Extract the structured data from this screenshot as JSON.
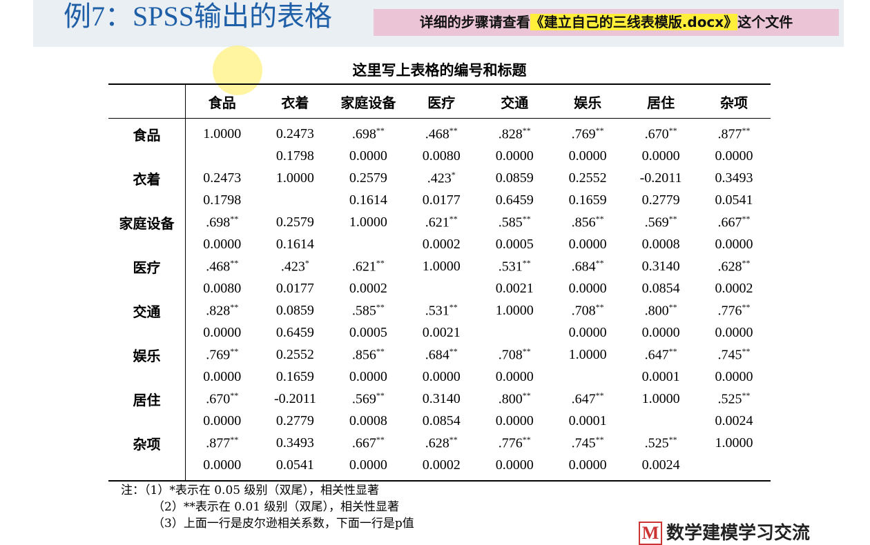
{
  "header": {
    "title": "例7：SPSS输出的表格",
    "note_before": "详细的步骤请查看",
    "note_highlight": "《建立自己的三线表模版.docx》",
    "note_after": "这个文件"
  },
  "table": {
    "caption": "这里写上表格的编号和标题",
    "columns": [
      "食品",
      "衣着",
      "家庭设备",
      "医疗",
      "交通",
      "娱乐",
      "居住",
      "杂项"
    ],
    "rows": [
      {
        "label": "食品",
        "r": [
          "1.0000",
          "0.2473",
          ".698**",
          ".468**",
          ".828**",
          ".769**",
          ".670**",
          ".877**"
        ],
        "p": [
          null,
          "0.1798",
          "0.0000",
          "0.0080",
          "0.0000",
          "0.0000",
          "0.0000",
          "0.0000"
        ]
      },
      {
        "label": "衣着",
        "r": [
          "0.2473",
          "1.0000",
          "0.2579",
          ".423*",
          "0.0859",
          "0.2552",
          "-0.2011",
          "0.3493"
        ],
        "p": [
          "0.1798",
          null,
          "0.1614",
          "0.0177",
          "0.6459",
          "0.1659",
          "0.2779",
          "0.0541"
        ]
      },
      {
        "label": "家庭设备",
        "r": [
          ".698**",
          "0.2579",
          "1.0000",
          ".621**",
          ".585**",
          ".856**",
          ".569**",
          ".667**"
        ],
        "p": [
          "0.0000",
          "0.1614",
          null,
          "0.0002",
          "0.0005",
          "0.0000",
          "0.0008",
          "0.0000"
        ]
      },
      {
        "label": "医疗",
        "r": [
          ".468**",
          ".423*",
          ".621**",
          "1.0000",
          ".531**",
          ".684**",
          "0.3140",
          ".628**"
        ],
        "p": [
          "0.0080",
          "0.0177",
          "0.0002",
          null,
          "0.0021",
          "0.0000",
          "0.0854",
          "0.0002"
        ]
      },
      {
        "label": "交通",
        "r": [
          ".828**",
          "0.0859",
          ".585**",
          ".531**",
          "1.0000",
          ".708**",
          ".800**",
          ".776**"
        ],
        "p": [
          "0.0000",
          "0.6459",
          "0.0005",
          "0.0021",
          null,
          "0.0000",
          "0.0000",
          "0.0000"
        ]
      },
      {
        "label": "娱乐",
        "r": [
          ".769**",
          "0.2552",
          ".856**",
          ".684**",
          ".708**",
          "1.0000",
          ".647**",
          ".745**"
        ],
        "p": [
          "0.0000",
          "0.1659",
          "0.0000",
          "0.0000",
          "0.0000",
          null,
          "0.0001",
          "0.0000"
        ]
      },
      {
        "label": "居住",
        "r": [
          ".670**",
          "-0.2011",
          ".569**",
          "0.3140",
          ".800**",
          ".647**",
          "1.0000",
          ".525**"
        ],
        "p": [
          "0.0000",
          "0.2779",
          "0.0008",
          "0.0854",
          "0.0000",
          "0.0001",
          null,
          "0.0024"
        ]
      },
      {
        "label": "杂项",
        "r": [
          ".877**",
          "0.3493",
          ".667**",
          ".628**",
          ".776**",
          ".745**",
          ".525**",
          "1.0000"
        ],
        "p": [
          "0.0000",
          "0.0541",
          "0.0000",
          "0.0002",
          "0.0000",
          "0.0000",
          "0.0024",
          null
        ]
      }
    ]
  },
  "notes": [
    "注：（1）*表示在 0.05 级别（双尾），相关性显著",
    "（2）**表示在 0.01 级别（双尾），相关性显著",
    "（3）上面一行是皮尔逊相关系数，下面一行是p值"
  ],
  "watermark": {
    "logo": "M",
    "text": "数学建模学习交流"
  }
}
